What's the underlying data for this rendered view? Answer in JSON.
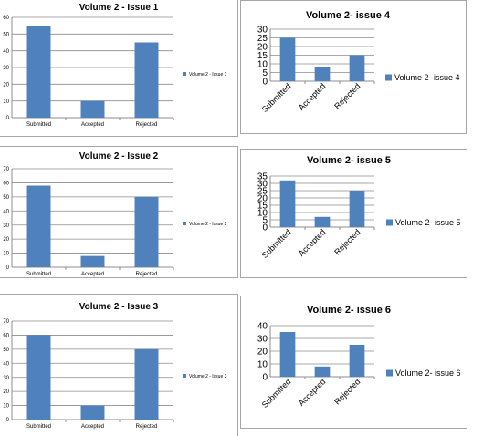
{
  "colors": {
    "bar": "#4f81bd",
    "grid": "#8c8c8c",
    "axis": "#8c8c8c"
  },
  "chart_data": [
    {
      "type": "bar",
      "title": "Volume 2 - Issue 1",
      "categories": [
        "Submitted",
        "Accepted",
        "Rejected"
      ],
      "series": [
        {
          "name": "Volume 2 - Issue 1",
          "values": [
            55,
            10,
            45
          ]
        }
      ],
      "ylim": [
        0,
        60
      ],
      "yticks": [
        0,
        10,
        20,
        30,
        40,
        50,
        60
      ],
      "grid": true,
      "legend": "right"
    },
    {
      "type": "bar",
      "title": "Volume 2 - Issue 2",
      "categories": [
        "Submitted",
        "Accepted",
        "Rejected"
      ],
      "series": [
        {
          "name": "Volume 2 - Issue 2",
          "values": [
            58,
            8,
            50
          ]
        }
      ],
      "ylim": [
        0,
        70
      ],
      "yticks": [
        0,
        10,
        20,
        30,
        40,
        50,
        60,
        70
      ],
      "grid": true,
      "legend": "right"
    },
    {
      "type": "bar",
      "title": "Volume 2 - Issue 3",
      "categories": [
        "Submitted",
        "Accepted",
        "Rejected"
      ],
      "series": [
        {
          "name": "Volume 2 - Issue 3",
          "values": [
            60,
            10,
            50
          ]
        }
      ],
      "ylim": [
        0,
        70
      ],
      "yticks": [
        0,
        10,
        20,
        30,
        40,
        50,
        60,
        70
      ],
      "grid": true,
      "legend": "right"
    },
    {
      "type": "bar",
      "title": "Volume 2- issue 4",
      "categories": [
        "Submitted",
        "Accepted",
        "Rejected"
      ],
      "series": [
        {
          "name": "Volume 2- issue 4",
          "values": [
            25,
            8,
            15
          ]
        }
      ],
      "ylim": [
        0,
        30
      ],
      "yticks": [
        0,
        5,
        10,
        15,
        20,
        25,
        30
      ],
      "grid": true,
      "legend": "right"
    },
    {
      "type": "bar",
      "title": "Volume 2- issue 5",
      "categories": [
        "Submitted",
        "Accepted",
        "Rejected"
      ],
      "series": [
        {
          "name": "Volume 2- issue 5",
          "values": [
            32,
            7,
            25
          ]
        }
      ],
      "ylim": [
        0,
        35
      ],
      "yticks": [
        0,
        5,
        10,
        15,
        20,
        25,
        30,
        35
      ],
      "grid": true,
      "legend": "right"
    },
    {
      "type": "bar",
      "title": "Volume 2- issue 6",
      "categories": [
        "Submitted",
        "Accepted",
        "Rejected"
      ],
      "series": [
        {
          "name": "Volume 2- issue 6",
          "values": [
            35,
            8,
            25
          ]
        }
      ],
      "ylim": [
        0,
        40
      ],
      "yticks": [
        0,
        10,
        20,
        30,
        40
      ],
      "grid": true,
      "legend": "right"
    }
  ]
}
